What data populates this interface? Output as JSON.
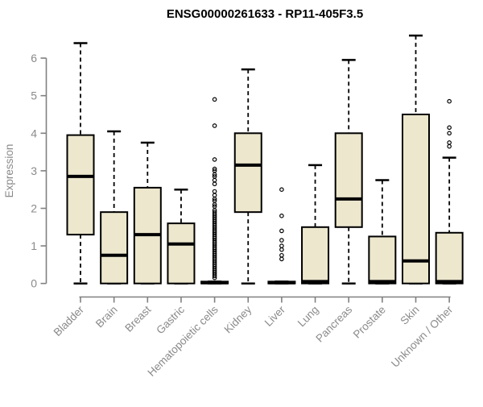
{
  "chart_data": {
    "type": "boxplot",
    "title": "ENSG00000261633 - RP11-405F3.5",
    "xlabel": "",
    "ylabel": "Expression",
    "ylim": [
      0,
      6.8
    ],
    "yticks": [
      0,
      1,
      2,
      3,
      4,
      5,
      6
    ],
    "grid": false,
    "legend": false,
    "categories": [
      "Bladder",
      "Brain",
      "Breast",
      "Gastric",
      "Hematopoietic cells",
      "Kidney",
      "Liver",
      "Lung",
      "Pancreas",
      "Prostate",
      "Skin",
      "Unknown / Other"
    ],
    "series": [
      {
        "label": "Bladder",
        "whisker_low": 0,
        "q1": 1.3,
        "median": 2.85,
        "q3": 3.95,
        "whisker_high": 6.4,
        "outliers": []
      },
      {
        "label": "Brain",
        "whisker_low": 0,
        "q1": 0,
        "median": 0.75,
        "q3": 1.9,
        "whisker_high": 4.05,
        "outliers": []
      },
      {
        "label": "Breast",
        "whisker_low": 0,
        "q1": 0,
        "median": 1.3,
        "q3": 2.55,
        "whisker_high": 3.75,
        "outliers": []
      },
      {
        "label": "Gastric",
        "whisker_low": 0,
        "q1": 0,
        "median": 1.05,
        "q3": 1.6,
        "whisker_high": 2.5,
        "outliers": []
      },
      {
        "label": "Hematopoietic cells",
        "whisker_low": 0,
        "q1": 0,
        "median": 0.02,
        "q3": 0.05,
        "whisker_high": 0.05,
        "outliers": [
          0.15,
          0.2,
          0.25,
          0.3,
          0.35,
          0.4,
          0.45,
          0.5,
          0.55,
          0.6,
          0.65,
          0.7,
          0.75,
          0.8,
          0.85,
          0.9,
          0.95,
          1.0,
          1.05,
          1.1,
          1.15,
          1.2,
          1.25,
          1.3,
          1.35,
          1.4,
          1.45,
          1.5,
          1.55,
          1.6,
          1.65,
          1.7,
          1.75,
          1.8,
          1.85,
          1.9,
          1.95,
          2.05,
          2.1,
          2.2,
          2.25,
          2.35,
          2.45,
          2.65,
          2.75,
          2.85,
          2.9,
          3.0,
          3.05,
          3.3,
          4.2,
          4.9
        ]
      },
      {
        "label": "Kidney",
        "whisker_low": 0,
        "q1": 1.9,
        "median": 3.15,
        "q3": 4.0,
        "whisker_high": 5.7,
        "outliers": []
      },
      {
        "label": "Liver",
        "whisker_low": 0,
        "q1": 0,
        "median": 0.02,
        "q3": 0.05,
        "whisker_high": 0.05,
        "outliers": [
          0.65,
          0.75,
          0.9,
          1.0,
          1.15,
          1.4,
          1.8,
          2.5
        ]
      },
      {
        "label": "Lung",
        "whisker_low": 0,
        "q1": 0,
        "median": 0.05,
        "q3": 1.5,
        "whisker_high": 3.15,
        "outliers": []
      },
      {
        "label": "Pancreas",
        "whisker_low": 0,
        "q1": 1.5,
        "median": 2.25,
        "q3": 4.0,
        "whisker_high": 5.95,
        "outliers": []
      },
      {
        "label": "Prostate",
        "whisker_low": 0,
        "q1": 0,
        "median": 0.05,
        "q3": 1.25,
        "whisker_high": 2.75,
        "outliers": []
      },
      {
        "label": "Skin",
        "whisker_low": 0,
        "q1": 0,
        "median": 0.6,
        "q3": 4.5,
        "whisker_high": 6.6,
        "outliers": []
      },
      {
        "label": "Unknown / Other",
        "whisker_low": 0,
        "q1": 0,
        "median": 0.05,
        "q3": 1.35,
        "whisker_high": 3.35,
        "outliers": [
          3.65,
          3.75,
          4.0,
          4.15,
          4.85
        ]
      }
    ],
    "colors": {
      "box_fill": "#ECE7CD",
      "box_stroke": "#000000",
      "median": "#000000",
      "whisker": "#000000",
      "outlier": "#000000",
      "axis": "#808080",
      "tick_label": "#8a8a8a",
      "title": "#000000",
      "background": "#ffffff"
    }
  }
}
